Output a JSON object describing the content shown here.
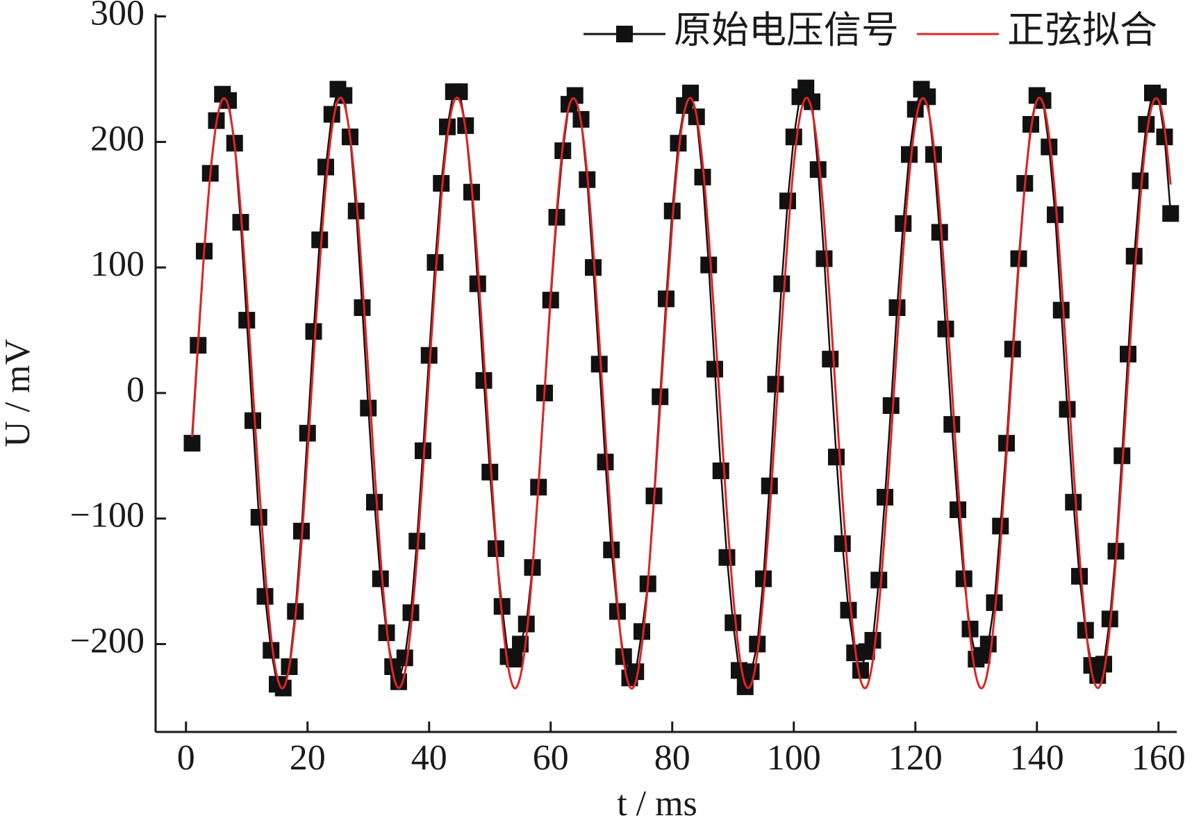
{
  "chart_data": {
    "type": "line",
    "x_label": "t / ms",
    "y_label": "U / mV",
    "xlim": [
      -5,
      163
    ],
    "ylim": [
      -270,
      302
    ],
    "xticks": [
      0,
      20,
      40,
      60,
      80,
      100,
      120,
      140,
      160
    ],
    "yticks": [
      {
        "value": -200,
        "label": "−200"
      },
      {
        "value": -100,
        "label": "−100"
      },
      0,
      100,
      200,
      300
    ],
    "legend": "upper right",
    "x": [
      1,
      2,
      3,
      4,
      5,
      6,
      7,
      8,
      9,
      10,
      11,
      12,
      13,
      14,
      15,
      16,
      17,
      18,
      19,
      20,
      21,
      22,
      23,
      24,
      25,
      26,
      27,
      28,
      29,
      30,
      31,
      32,
      33,
      34,
      35,
      36,
      37,
      38,
      39,
      40,
      41,
      42,
      43,
      44,
      45,
      46,
      47,
      48,
      49,
      50,
      51,
      52,
      53,
      54,
      55,
      56,
      57,
      58,
      59,
      60,
      61,
      62,
      63,
      64,
      65,
      66,
      67,
      68,
      69,
      70,
      71,
      72,
      73,
      74,
      75,
      76,
      77,
      78,
      79,
      80,
      81,
      82,
      83,
      84,
      85,
      86,
      87,
      88,
      89,
      90,
      91,
      92,
      93,
      94,
      95,
      96,
      97,
      98,
      99,
      100,
      101,
      102,
      103,
      104,
      105,
      106,
      107,
      108,
      109,
      110,
      111,
      112,
      113,
      114,
      115,
      116,
      117,
      118,
      119,
      120,
      121,
      122,
      123,
      124,
      125,
      126,
      127,
      128,
      129,
      130,
      131,
      132,
      133,
      134,
      135,
      136,
      137,
      138,
      139,
      140,
      141,
      142,
      143,
      144,
      145,
      146,
      147,
      148,
      149,
      150,
      151,
      152,
      153,
      154,
      155,
      156,
      157,
      158,
      159,
      160,
      161,
      162
    ],
    "series": [
      {
        "name": "原始电压信号",
        "color": "#111111",
        "marker": "square",
        "values": [
          -40,
          38,
          113,
          175,
          217,
          238,
          233,
          199,
          136,
          58,
          -22,
          -99,
          -162,
          -205,
          -232,
          -235,
          -218,
          -174,
          -110,
          -32,
          49,
          122,
          180,
          222,
          242,
          237,
          204,
          145,
          68,
          -12,
          -87,
          -148,
          -191,
          -218,
          -230,
          -211,
          -175,
          -118,
          -46,
          30,
          104,
          167,
          212,
          240,
          240,
          213,
          160,
          87,
          10,
          -63,
          -124,
          -170,
          -210,
          -212,
          -200,
          -184,
          -139,
          -75,
          0,
          74,
          140,
          193,
          230,
          237,
          218,
          170,
          100,
          23,
          -55,
          -125,
          -174,
          -210,
          -227,
          -222,
          -190,
          -152,
          -82,
          -3,
          75,
          145,
          199,
          229,
          239,
          220,
          172,
          102,
          19,
          -62,
          -131,
          -183,
          -221,
          -234,
          -222,
          -200,
          -148,
          -74,
          7,
          87,
          153,
          204,
          236,
          243,
          232,
          178,
          107,
          27,
          -51,
          -120,
          -173,
          -207,
          -221,
          -206,
          -197,
          -149,
          -83,
          -10,
          68,
          135,
          190,
          226,
          242,
          236,
          190,
          128,
          51,
          -25,
          -93,
          -148,
          -188,
          -212,
          -209,
          -200,
          -167,
          -106,
          -40,
          35,
          107,
          167,
          214,
          237,
          233,
          196,
          142,
          66,
          -13,
          -87,
          -146,
          -189,
          -217,
          -225,
          -216,
          -180,
          -126,
          -50,
          31,
          109,
          169,
          214,
          239,
          236,
          204,
          143
        ]
      },
      {
        "name": "正弦拟合",
        "color": "#e02424",
        "marker": "none",
        "values": [
          -35,
          41,
          114,
          174,
          215,
          234,
          228,
          197,
          146,
          79,
          3,
          -72,
          -140,
          -194,
          -226,
          -235,
          -218,
          -178,
          -120,
          -48,
          28,
          102,
          165,
          210,
          233,
          231,
          204,
          156,
          91,
          16,
          -60,
          -130,
          -186,
          -222,
          -235,
          -223,
          -187,
          -131,
          -61,
          15,
          90,
          155,
          204,
          231,
          233,
          210,
          165,
          103,
          29,
          -47,
          -119,
          -178,
          -218,
          -235,
          -226,
          -194,
          -141,
          -73,
          2,
          78,
          145,
          197,
          228,
          234,
          216,
          175,
          115,
          42,
          -34,
          -107,
          -169,
          -213,
          -234,
          -230,
          -201,
          -152,
          -86,
          -11,
          66,
          135,
          190,
          224,
          235,
          221,
          183,
          126,
          55,
          -21,
          -96,
          -160,
          -207,
          -232,
          -232,
          -208,
          -161,
          -98,
          -24,
          53,
          124,
          182,
          220,
          235,
          225,
          191,
          137,
          68,
          -8,
          -84,
          -150,
          -200,
          -229,
          -234,
          -213,
          -170,
          -109,
          -36,
          40,
          113,
          173,
          215,
          234,
          228,
          198,
          147,
          80,
          5,
          -71,
          -140,
          -193,
          -226,
          -235,
          -219,
          -179,
          -121,
          -49,
          27,
          101,
          164,
          209,
          233,
          231,
          205,
          157,
          92,
          18,
          -59,
          -129,
          -185,
          -222,
          -235,
          -223,
          -187,
          -132,
          -62,
          14,
          89,
          154,
          203,
          230,
          233,
          211,
          166
        ]
      }
    ]
  }
}
